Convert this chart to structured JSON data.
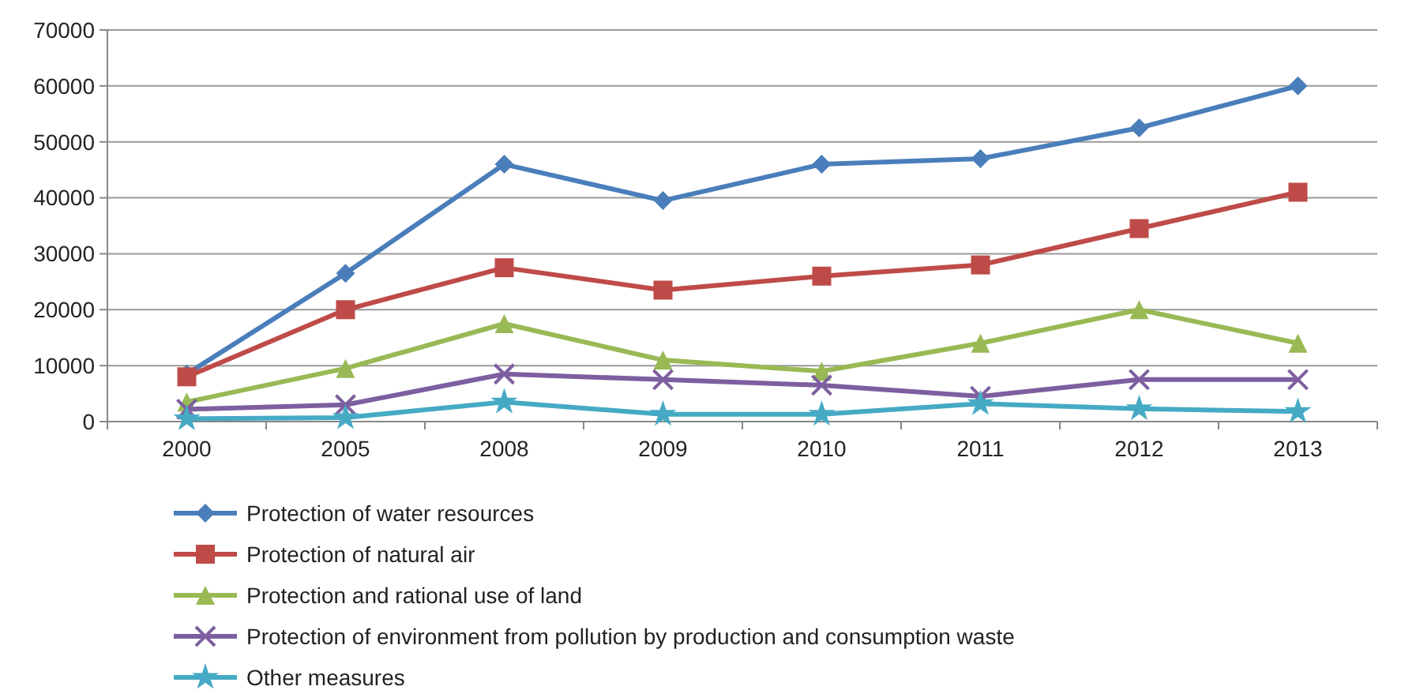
{
  "chart_data": {
    "type": "line",
    "categories": [
      "2000",
      "2005",
      "2008",
      "2009",
      "2010",
      "2011",
      "2012",
      "2013"
    ],
    "ylim": [
      0,
      70000
    ],
    "yticks": [
      0,
      10000,
      20000,
      30000,
      40000,
      50000,
      60000,
      70000
    ],
    "grid": "y",
    "legend": "bottom",
    "series": [
      {
        "name": "Protection of water resources",
        "color": "#4a7ebb",
        "marker": "diamond",
        "values": [
          8500,
          26500,
          46000,
          39500,
          46000,
          47000,
          52500,
          60000
        ]
      },
      {
        "name": "Protection of natural air",
        "color": "#be4b48",
        "marker": "square",
        "values": [
          8000,
          20000,
          27500,
          23500,
          26000,
          28000,
          34500,
          41000
        ]
      },
      {
        "name": "Protection and rational use of land",
        "color": "#98b954",
        "marker": "triangle",
        "values": [
          3500,
          9500,
          17500,
          11000,
          9000,
          14000,
          20000,
          14000
        ]
      },
      {
        "name": "Protection of environment from pollution by production and consumption waste",
        "color": "#7d5fa0",
        "marker": "cross",
        "values": [
          2200,
          3000,
          8500,
          7500,
          6500,
          4500,
          7500,
          7500
        ]
      },
      {
        "name": "Other measures",
        "color": "#46aac5",
        "marker": "star",
        "values": [
          500,
          700,
          3500,
          1300,
          1300,
          3200,
          2300,
          1800
        ]
      }
    ]
  }
}
